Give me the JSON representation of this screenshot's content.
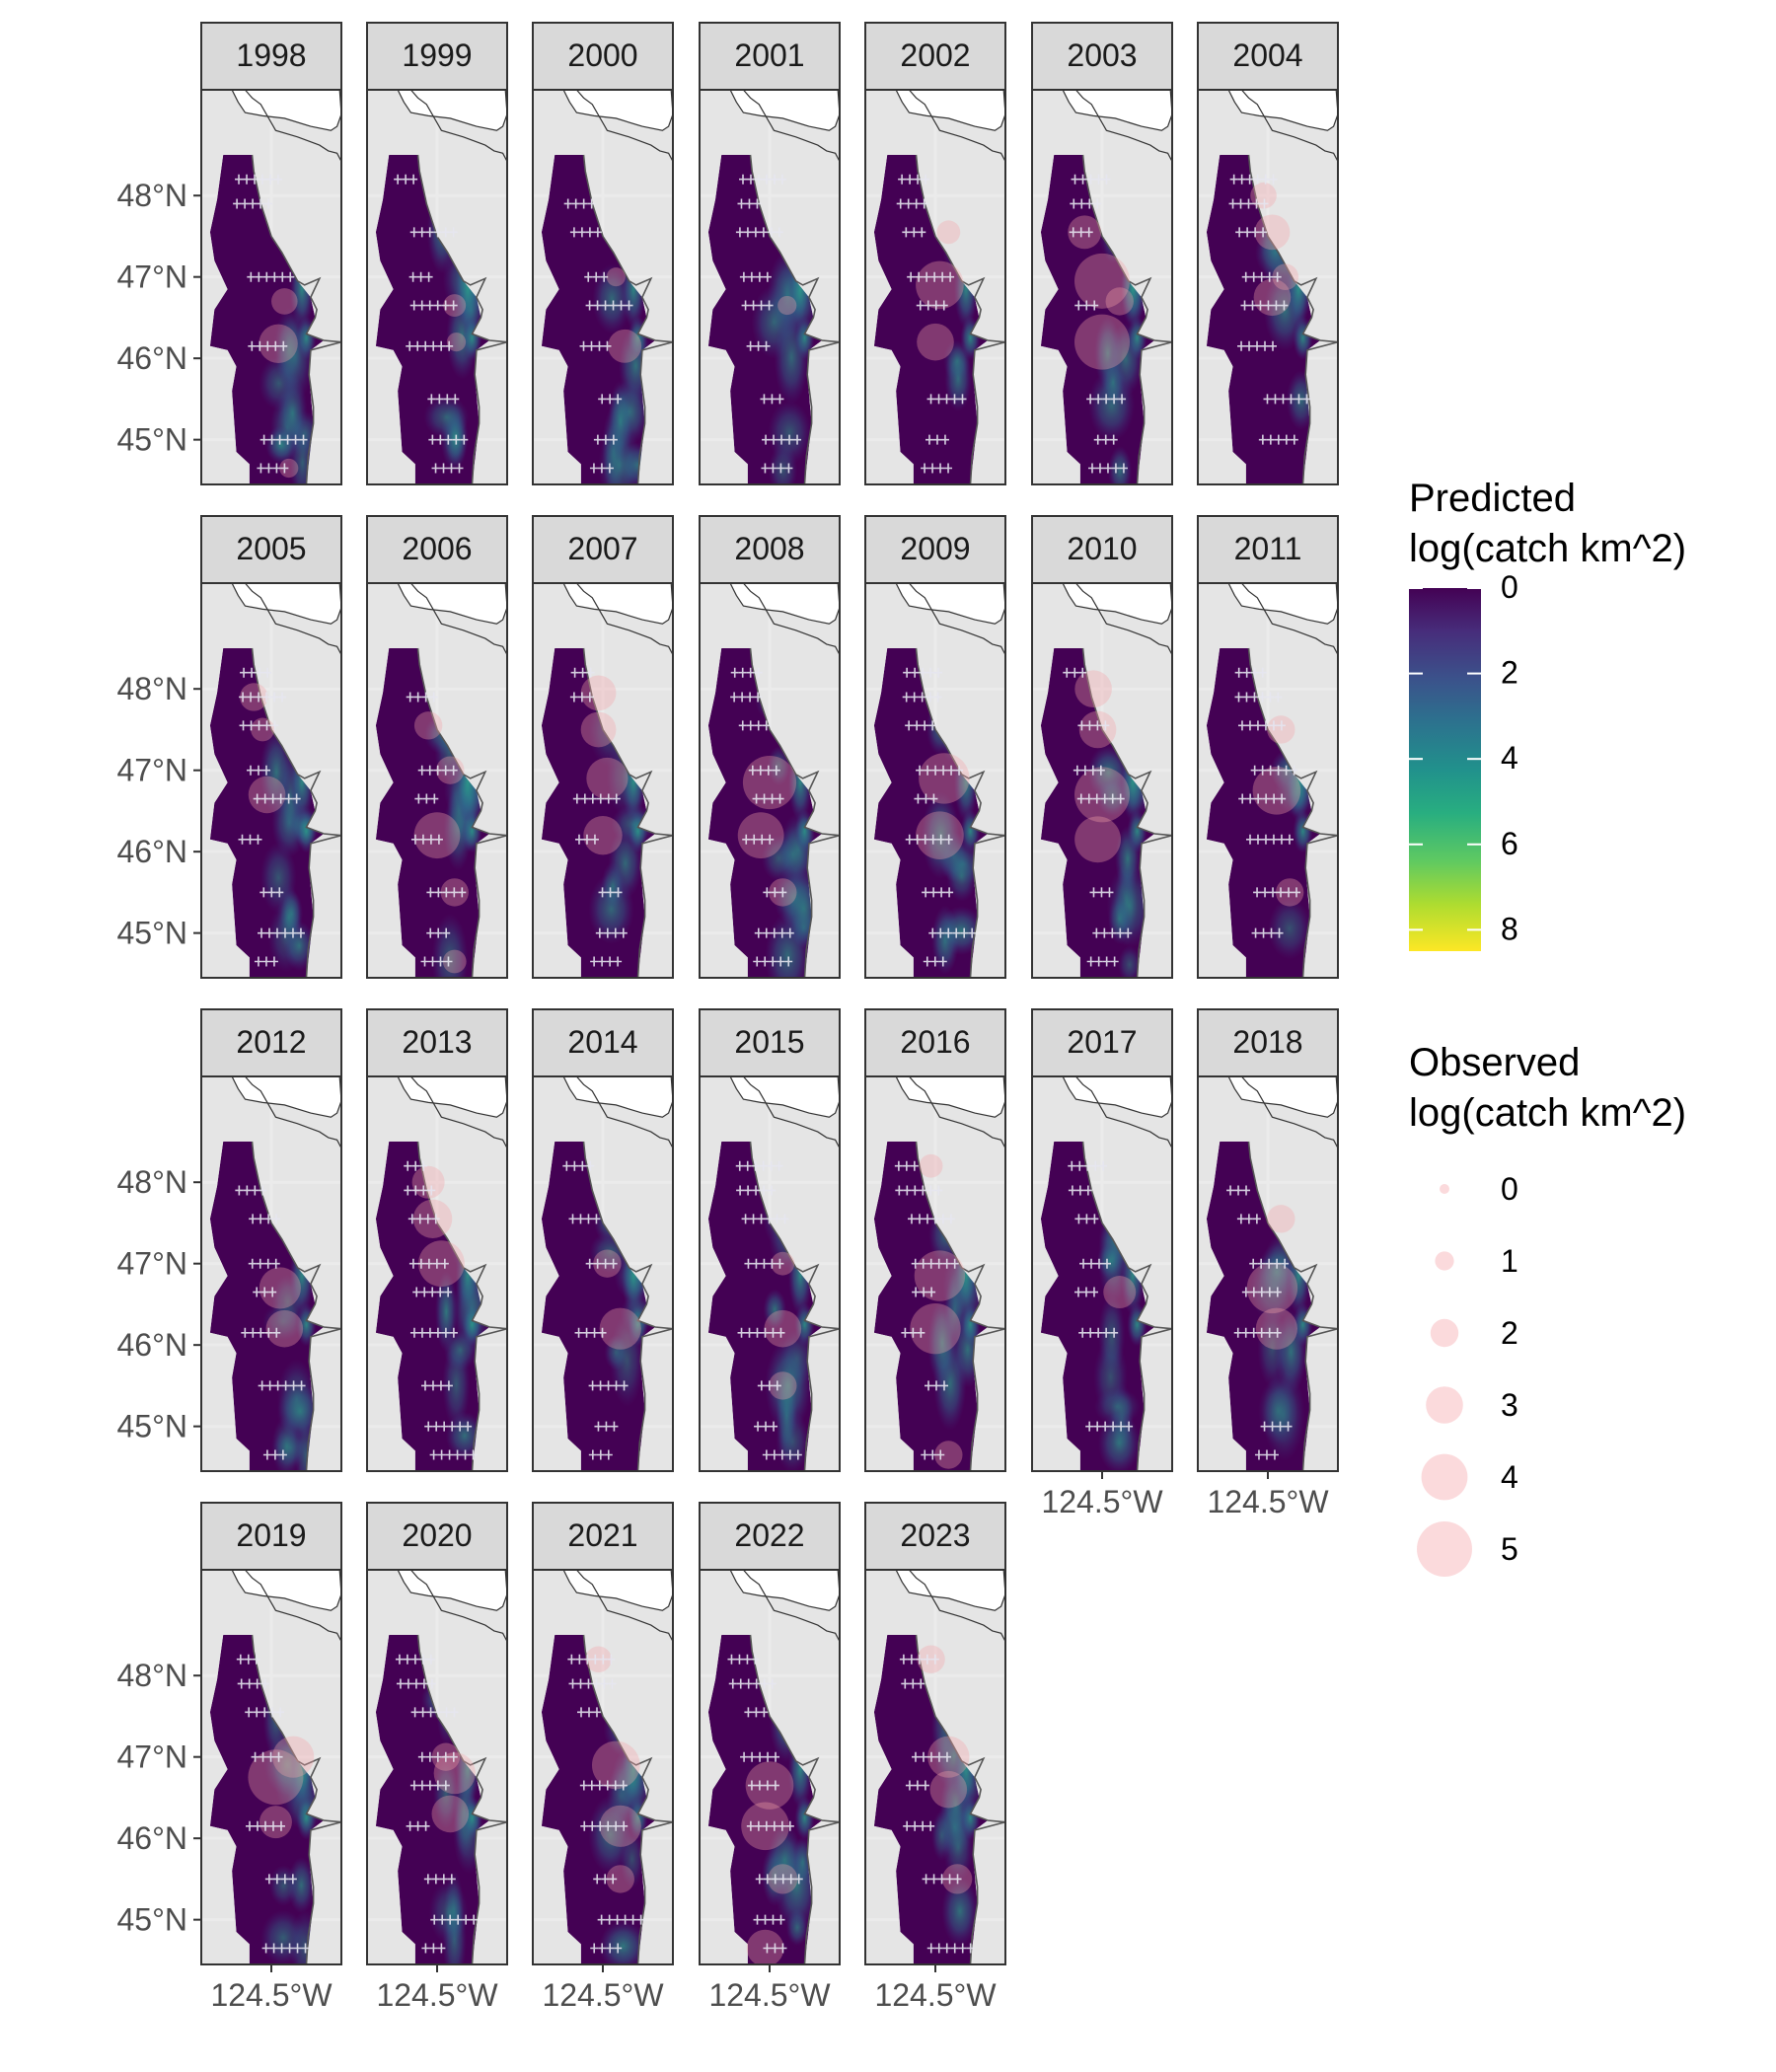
{
  "chart_data": {
    "type": "heatmap",
    "layout": "faceted small multiples (map panels by year)",
    "facet_label": "year",
    "years": [
      "1998",
      "1999",
      "2000",
      "2001",
      "2002",
      "2003",
      "2004",
      "2005",
      "2006",
      "2007",
      "2008",
      "2009",
      "2010",
      "2011",
      "2012",
      "2013",
      "2014",
      "2015",
      "2016",
      "2017",
      "2018",
      "2019",
      "2020",
      "2021",
      "2022",
      "2023"
    ],
    "y_axis": {
      "ticks": [
        "48°N",
        "47°N",
        "46°N",
        "45°N"
      ],
      "tick_values": [
        48,
        47,
        46,
        45
      ],
      "range": [
        44.45,
        49.3
      ]
    },
    "x_axis": {
      "ticks": [
        "124.5°W"
      ],
      "tick_values": [
        -124.5
      ],
      "range": [
        -125.3,
        -123.7
      ]
    },
    "grid": true,
    "legend_position": "right",
    "legends": {
      "predicted": {
        "title": "Predicted\nlog(catch km^2)",
        "title_lines": [
          "Predicted",
          "log(catch km^2)"
        ],
        "type": "continuous colorbar",
        "palette": "viridis",
        "range": [
          0,
          8.5
        ],
        "breaks": [
          "0",
          "2",
          "4",
          "6",
          "8"
        ],
        "break_values": [
          0,
          2,
          4,
          6,
          8
        ],
        "colors": [
          "#440154",
          "#3b528b",
          "#21918c",
          "#5ec962",
          "#fde725"
        ]
      },
      "observed": {
        "title": "Observed\nlog(catch km^2)",
        "title_lines": [
          "Observed",
          "log(catch km^2)"
        ],
        "type": "size",
        "breaks": [
          "0",
          "1",
          "2",
          "3",
          "4",
          "5"
        ],
        "break_values": [
          0,
          1,
          2,
          3,
          4,
          5
        ],
        "point_color": "#f4a3a8",
        "point_alpha": 0.35
      }
    },
    "sampling_marker": "+",
    "sampling_marker_color": "#e6e6f0",
    "observed_catch_by_year": {
      "1998": [
        [
          -124.35,
          46.7,
          1.8
        ],
        [
          -124.42,
          46.18,
          3.2
        ],
        [
          -124.3,
          44.65,
          1.0
        ]
      ],
      "1999": [
        [
          -124.3,
          46.65,
          1.4
        ],
        [
          -124.28,
          46.2,
          1.0
        ]
      ],
      "2000": [
        [
          -124.25,
          46.15,
          2.6
        ],
        [
          -124.35,
          47.0,
          1.0
        ]
      ],
      "2001": [
        [
          -124.3,
          46.65,
          1.0
        ]
      ],
      "2002": [
        [
          -124.45,
          46.9,
          4.2
        ],
        [
          -124.5,
          46.2,
          3.0
        ],
        [
          -124.35,
          47.55,
          1.5
        ]
      ],
      "2003": [
        [
          -124.5,
          46.95,
          5.0
        ],
        [
          -124.5,
          46.2,
          5.0
        ],
        [
          -124.7,
          47.55,
          2.6
        ],
        [
          -124.3,
          46.7,
          2.0
        ]
      ],
      "2004": [
        [
          -124.45,
          47.55,
          2.8
        ],
        [
          -124.45,
          46.75,
          3.0
        ],
        [
          -124.55,
          48.0,
          1.8
        ],
        [
          -124.3,
          47.0,
          1.8
        ]
      ],
      "2005": [
        [
          -124.7,
          47.9,
          2.0
        ],
        [
          -124.55,
          46.7,
          3.0
        ],
        [
          -124.6,
          47.5,
          1.5
        ]
      ],
      "2006": [
        [
          -124.5,
          46.2,
          4.0
        ],
        [
          -124.6,
          47.55,
          2.0
        ],
        [
          -124.3,
          45.5,
          2.0
        ],
        [
          -124.3,
          44.65,
          1.5
        ],
        [
          -124.35,
          47.0,
          2.0
        ]
      ],
      "2007": [
        [
          -124.55,
          47.95,
          2.8
        ],
        [
          -124.55,
          47.5,
          2.8
        ],
        [
          -124.45,
          46.9,
          3.5
        ],
        [
          -124.5,
          46.2,
          3.2
        ]
      ],
      "2008": [
        [
          -124.5,
          46.85,
          4.8
        ],
        [
          -124.6,
          46.2,
          4.0
        ],
        [
          -124.35,
          45.5,
          2.0
        ]
      ],
      "2009": [
        [
          -124.4,
          46.9,
          4.5
        ],
        [
          -124.45,
          46.2,
          4.2
        ]
      ],
      "2010": [
        [
          -124.6,
          48.0,
          3.0
        ],
        [
          -124.55,
          47.5,
          3.0
        ],
        [
          -124.5,
          46.7,
          5.0
        ],
        [
          -124.55,
          46.15,
          4.0
        ]
      ],
      "2011": [
        [
          -124.4,
          46.75,
          4.2
        ],
        [
          -124.35,
          47.5,
          2.0
        ],
        [
          -124.25,
          45.5,
          2.0
        ]
      ],
      "2012": [
        [
          -124.4,
          46.7,
          3.5
        ],
        [
          -124.35,
          46.2,
          3.0
        ]
      ],
      "2013": [
        [
          -124.55,
          47.55,
          3.2
        ],
        [
          -124.45,
          47.0,
          4.0
        ],
        [
          -124.6,
          48.0,
          2.5
        ]
      ],
      "2014": [
        [
          -124.3,
          46.2,
          3.5
        ],
        [
          -124.45,
          47.0,
          2.0
        ]
      ],
      "2015": [
        [
          -124.35,
          46.2,
          3.0
        ],
        [
          -124.35,
          45.5,
          2.0
        ],
        [
          -124.35,
          47.0,
          1.5
        ]
      ],
      "2016": [
        [
          -124.45,
          46.85,
          4.5
        ],
        [
          -124.5,
          46.2,
          4.5
        ],
        [
          -124.35,
          44.65,
          2.0
        ],
        [
          -124.55,
          48.2,
          1.5
        ]
      ],
      "2017": [
        [
          -124.3,
          46.65,
          2.5
        ]
      ],
      "2018": [
        [
          -124.45,
          46.7,
          4.5
        ],
        [
          -124.4,
          46.2,
          3.5
        ],
        [
          -124.35,
          47.55,
          2.0
        ]
      ],
      "2019": [
        [
          -124.45,
          46.75,
          5.0
        ],
        [
          -124.25,
          47.0,
          3.5
        ],
        [
          -124.45,
          46.2,
          2.5
        ]
      ],
      "2020": [
        [
          -124.3,
          46.8,
          3.5
        ],
        [
          -124.35,
          46.3,
          3.0
        ],
        [
          -124.4,
          47.0,
          2.0
        ]
      ],
      "2021": [
        [
          -124.35,
          46.9,
          4.2
        ],
        [
          -124.3,
          46.15,
          3.5
        ],
        [
          -124.3,
          45.5,
          2.0
        ],
        [
          -124.55,
          48.2,
          1.8
        ]
      ],
      "2022": [
        [
          -124.5,
          46.65,
          4.2
        ],
        [
          -124.55,
          46.15,
          4.2
        ],
        [
          -124.35,
          45.5,
          2.2
        ],
        [
          -124.55,
          44.65,
          3.0
        ]
      ],
      "2023": [
        [
          -124.35,
          47.0,
          3.5
        ],
        [
          -124.35,
          46.6,
          3.0
        ],
        [
          -124.25,
          45.5,
          2.2
        ],
        [
          -124.55,
          48.2,
          2.0
        ]
      ]
    }
  }
}
